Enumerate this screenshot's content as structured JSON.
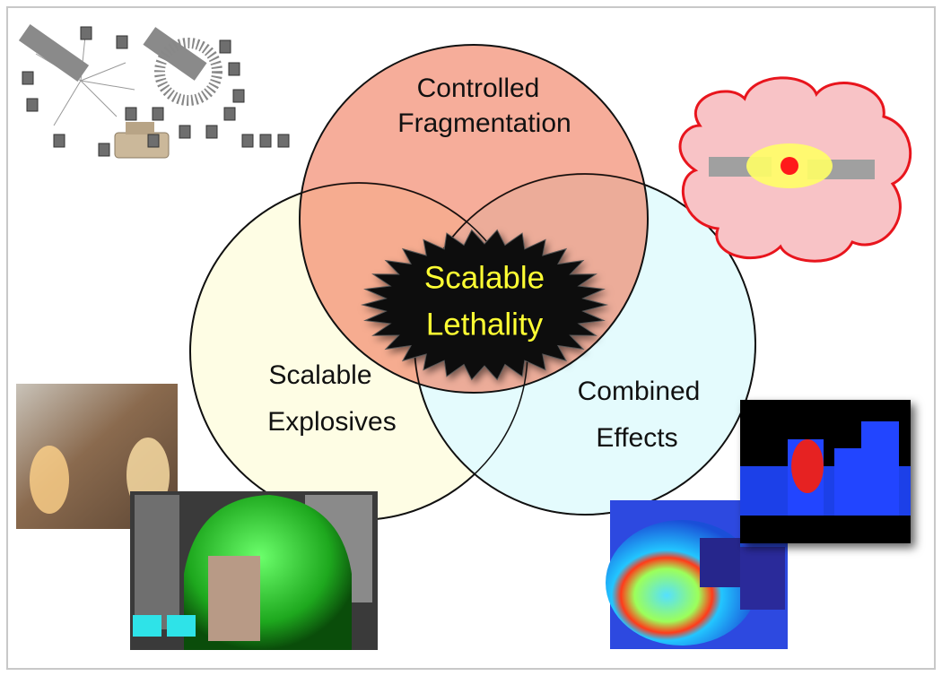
{
  "diagram": {
    "type": "venn",
    "sets": [
      {
        "label": [
          "Controlled",
          "Fragmentation"
        ]
      },
      {
        "label": [
          "Scalable",
          "Explosives"
        ]
      },
      {
        "label": [
          "Combined",
          "Effects"
        ]
      }
    ],
    "center": {
      "label": [
        "Scalable",
        "Lethality"
      ]
    }
  }
}
